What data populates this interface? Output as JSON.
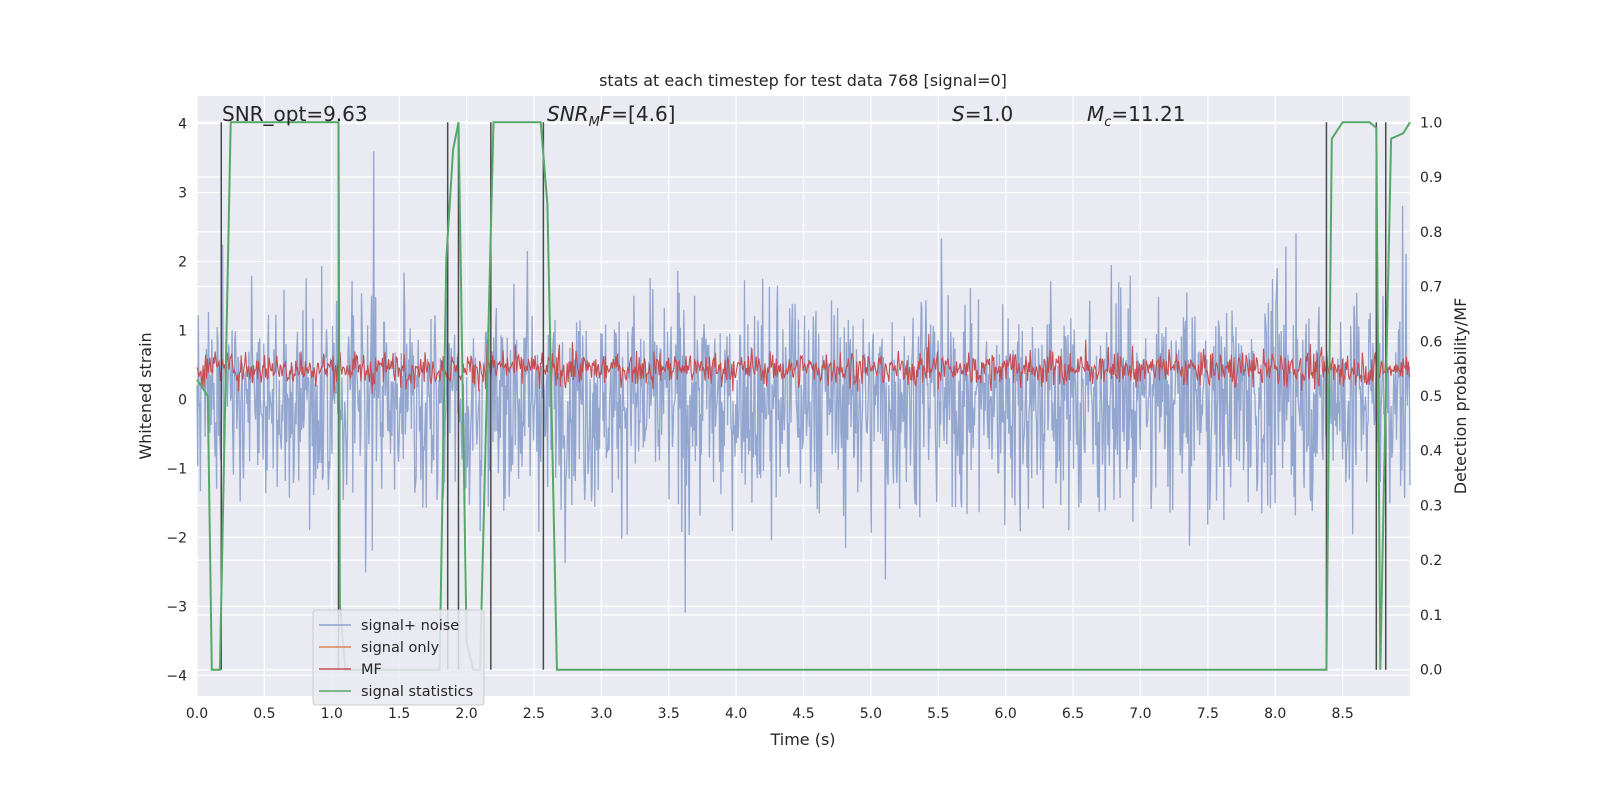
{
  "chart_data": {
    "type": "line",
    "title": "stats at each timestep for test data 768 [signal=0]",
    "xlabel": "Time (s)",
    "ylabel": "Whitened strain",
    "y2label": "Detection probability/MF",
    "xlim": [
      0.0,
      9.0
    ],
    "ylim": [
      -4.3,
      4.4
    ],
    "y2lim": [
      -0.048,
      1.048
    ],
    "xticks": [
      "0.0",
      "0.5",
      "1.0",
      "1.5",
      "2.0",
      "2.5",
      "3.0",
      "3.5",
      "4.0",
      "4.5",
      "5.0",
      "5.5",
      "6.0",
      "6.5",
      "7.0",
      "7.5",
      "8.0",
      "8.5"
    ],
    "yticks": [
      "4",
      "3",
      "2",
      "1",
      "0",
      "−1",
      "−2",
      "−3",
      "−4"
    ],
    "y2ticks": [
      "1.0",
      "0.9",
      "0.8",
      "0.7",
      "0.6",
      "0.5",
      "0.4",
      "0.3",
      "0.2",
      "0.1",
      "0.0"
    ],
    "grid": true,
    "legend_position": "lower-left",
    "annotations": {
      "snr_opt": "SNR_opt=9.63",
      "snr_mf_sym": "SNR",
      "snr_mf_sub": "M",
      "snr_mf_tail": "F",
      "snr_mf_value": "=[4.6]",
      "s_sym": "S",
      "s_value": "=1.0",
      "mc_sym": "M",
      "mc_sub": "c",
      "mc_value": "=11.21"
    },
    "colors": {
      "signal_noise": "#8da2cc",
      "signal_only": "#dd8452",
      "mf": "#c44e52",
      "signal_statistics": "#55a868",
      "vlines": "#4a4a4a",
      "background": "#eaeaf2"
    },
    "series": [
      {
        "name": "signal+ noise",
        "description": "whitened strain, noise-like, peak amplitude ~3.5",
        "envelope_max": 3.6,
        "envelope_min": -3.7
      },
      {
        "name": "signal only",
        "values": []
      },
      {
        "name": "MF",
        "axis": "right",
        "baseline": 0.55,
        "range": [
          0.5,
          0.62
        ]
      },
      {
        "name": "signal statistics",
        "axis": "right",
        "x": [
          0.0,
          0.08,
          0.11,
          0.17,
          0.25,
          0.3,
          1.0,
          1.05,
          1.06,
          1.1,
          1.8,
          1.85,
          1.9,
          1.94,
          2.0,
          2.05,
          2.1,
          2.2,
          2.25,
          2.55,
          2.6,
          2.67,
          8.2,
          8.38,
          8.42,
          8.5,
          8.7,
          8.75,
          8.78,
          8.82,
          8.86,
          8.95,
          9.0
        ],
        "y": [
          0.53,
          0.5,
          0.0,
          0.0,
          1.0,
          1.0,
          1.0,
          1.0,
          0.12,
          0.0,
          0.0,
          0.75,
          0.95,
          1.0,
          0.05,
          0.0,
          0.0,
          1.0,
          1.0,
          1.0,
          0.85,
          0.0,
          0.0,
          0.0,
          0.97,
          1.0,
          1.0,
          0.99,
          0.0,
          0.5,
          0.97,
          0.98,
          1.0
        ]
      }
    ],
    "vlines_x": [
      0.18,
      1.05,
      1.86,
      1.94,
      2.18,
      2.57,
      8.38,
      8.75,
      8.82
    ]
  }
}
